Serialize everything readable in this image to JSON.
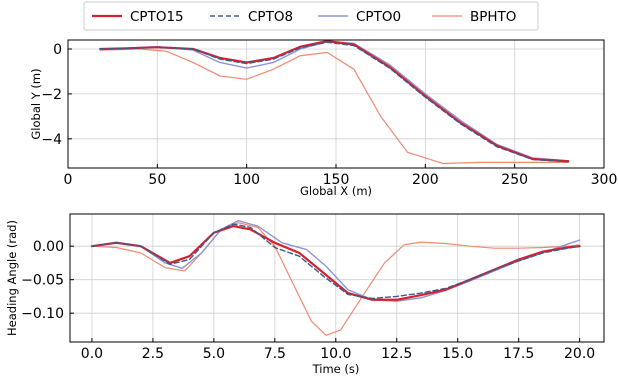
{
  "chart_data": [
    {
      "type": "line",
      "xlabel": "Global X (m)",
      "ylabel": "Global Y (m)",
      "xlim": [
        0,
        300
      ],
      "ylim": [
        -5.3,
        0.4
      ],
      "xticks": [
        0,
        50,
        100,
        150,
        200,
        250,
        300
      ],
      "yticks": [
        0,
        -2,
        -4
      ],
      "grid": true,
      "series": [
        {
          "name": "CPTO15",
          "points": [
            [
              18,
              0
            ],
            [
              30,
              0.02
            ],
            [
              50,
              0.08
            ],
            [
              70,
              0
            ],
            [
              85,
              -0.4
            ],
            [
              100,
              -0.6
            ],
            [
              115,
              -0.4
            ],
            [
              130,
              0.1
            ],
            [
              145,
              0.35
            ],
            [
              160,
              0.2
            ],
            [
              180,
              -0.8
            ],
            [
              200,
              -2.1
            ],
            [
              220,
              -3.3
            ],
            [
              240,
              -4.3
            ],
            [
              260,
              -4.9
            ],
            [
              280,
              -5.0
            ]
          ]
        },
        {
          "name": "CPTO8",
          "points": [
            [
              18,
              0
            ],
            [
              30,
              0.02
            ],
            [
              50,
              0.08
            ],
            [
              70,
              0
            ],
            [
              85,
              -0.45
            ],
            [
              100,
              -0.65
            ],
            [
              115,
              -0.45
            ],
            [
              130,
              0.05
            ],
            [
              145,
              0.3
            ],
            [
              160,
              0.15
            ],
            [
              180,
              -0.85
            ],
            [
              200,
              -2.15
            ],
            [
              220,
              -3.35
            ],
            [
              240,
              -4.35
            ],
            [
              260,
              -4.92
            ],
            [
              280,
              -5.02
            ]
          ]
        },
        {
          "name": "CPTO0",
          "points": [
            [
              18,
              0
            ],
            [
              30,
              0.03
            ],
            [
              50,
              0.1
            ],
            [
              70,
              -0.05
            ],
            [
              85,
              -0.6
            ],
            [
              100,
              -0.85
            ],
            [
              115,
              -0.6
            ],
            [
              130,
              0
            ],
            [
              145,
              0.32
            ],
            [
              160,
              0.25
            ],
            [
              180,
              -0.7
            ],
            [
              200,
              -2.0
            ],
            [
              220,
              -3.2
            ],
            [
              240,
              -4.25
            ],
            [
              260,
              -4.85
            ],
            [
              280,
              -4.98
            ]
          ]
        },
        {
          "name": "BPHTO",
          "points": [
            [
              18,
              -0.05
            ],
            [
              40,
              0
            ],
            [
              55,
              -0.1
            ],
            [
              70,
              -0.6
            ],
            [
              85,
              -1.2
            ],
            [
              100,
              -1.35
            ],
            [
              115,
              -0.9
            ],
            [
              130,
              -0.3
            ],
            [
              145,
              -0.15
            ],
            [
              160,
              -0.9
            ],
            [
              175,
              -3.0
            ],
            [
              190,
              -4.6
            ],
            [
              210,
              -5.1
            ],
            [
              230,
              -5.05
            ],
            [
              250,
              -5.05
            ],
            [
              270,
              -5.05
            ],
            [
              280,
              -5.05
            ]
          ]
        }
      ]
    },
    {
      "type": "line",
      "xlabel": "Time (s)",
      "ylabel": "Heading Angle (rad)",
      "xlim": [
        -0.9,
        21
      ],
      "ylim": [
        -0.143,
        0.048
      ],
      "xticks": [
        0,
        2.5,
        5,
        7.5,
        10,
        12.5,
        15,
        17.5,
        20
      ],
      "xtick_labels": [
        "0.0",
        "2.5",
        "5.0",
        "7.5",
        "10.0",
        "12.5",
        "15.0",
        "17.5",
        "20.0"
      ],
      "yticks": [
        0.0,
        -0.05,
        -0.1
      ],
      "ytick_labels": [
        "0.00",
        "−0.05",
        "−0.10"
      ],
      "grid": true,
      "series": [
        {
          "name": "CPTO15",
          "points": [
            [
              0,
              0
            ],
            [
              1,
              0.005
            ],
            [
              2,
              0
            ],
            [
              3.2,
              -0.025
            ],
            [
              4,
              -0.015
            ],
            [
              5,
              0.02
            ],
            [
              5.8,
              0.03
            ],
            [
              6.5,
              0.025
            ],
            [
              7.5,
              0.005
            ],
            [
              8.5,
              -0.01
            ],
            [
              9.5,
              -0.04
            ],
            [
              10.5,
              -0.07
            ],
            [
              11.5,
              -0.08
            ],
            [
              12.5,
              -0.08
            ],
            [
              13.5,
              -0.073
            ],
            [
              14.5,
              -0.065
            ],
            [
              15.5,
              -0.05
            ],
            [
              16.5,
              -0.035
            ],
            [
              17.5,
              -0.02
            ],
            [
              18.5,
              -0.008
            ],
            [
              19.5,
              -0.002
            ],
            [
              20,
              0
            ]
          ]
        },
        {
          "name": "CPTO8",
          "points": [
            [
              0,
              0
            ],
            [
              1,
              0.005
            ],
            [
              2,
              0
            ],
            [
              3.2,
              -0.027
            ],
            [
              4,
              -0.02
            ],
            [
              5,
              0.02
            ],
            [
              5.8,
              0.033
            ],
            [
              6.5,
              0.028
            ],
            [
              7.5,
              -0.002
            ],
            [
              8.5,
              -0.015
            ],
            [
              9.5,
              -0.045
            ],
            [
              10.5,
              -0.072
            ],
            [
              11.5,
              -0.078
            ],
            [
              12.5,
              -0.075
            ],
            [
              13.5,
              -0.07
            ],
            [
              14.5,
              -0.063
            ],
            [
              15.5,
              -0.05
            ],
            [
              16.5,
              -0.035
            ],
            [
              17.5,
              -0.022
            ],
            [
              18.5,
              -0.01
            ],
            [
              19.5,
              -0.003
            ],
            [
              20,
              0
            ]
          ]
        },
        {
          "name": "CPTO0",
          "points": [
            [
              0,
              0
            ],
            [
              1,
              0.006
            ],
            [
              2,
              0
            ],
            [
              3,
              -0.025
            ],
            [
              3.7,
              -0.033
            ],
            [
              4.5,
              -0.01
            ],
            [
              5.3,
              0.025
            ],
            [
              6,
              0.038
            ],
            [
              6.8,
              0.03
            ],
            [
              7.8,
              0.005
            ],
            [
              8.8,
              -0.005
            ],
            [
              9.6,
              -0.03
            ],
            [
              10.5,
              -0.065
            ],
            [
              11.5,
              -0.08
            ],
            [
              12.5,
              -0.082
            ],
            [
              13.5,
              -0.077
            ],
            [
              14.5,
              -0.066
            ],
            [
              15.5,
              -0.052
            ],
            [
              16.5,
              -0.037
            ],
            [
              17.5,
              -0.022
            ],
            [
              18.5,
              -0.01
            ],
            [
              19.5,
              0.003
            ],
            [
              20,
              0.009
            ]
          ]
        },
        {
          "name": "BPHTO",
          "points": [
            [
              0,
              0
            ],
            [
              1,
              -0.002
            ],
            [
              2,
              -0.01
            ],
            [
              3,
              -0.032
            ],
            [
              3.8,
              -0.037
            ],
            [
              4.5,
              -0.01
            ],
            [
              5.3,
              0.025
            ],
            [
              6,
              0.035
            ],
            [
              6.8,
              0.028
            ],
            [
              7.5,
              0
            ],
            [
              8.3,
              -0.06
            ],
            [
              9,
              -0.112
            ],
            [
              9.6,
              -0.133
            ],
            [
              10.2,
              -0.125
            ],
            [
              11,
              -0.08
            ],
            [
              12,
              -0.025
            ],
            [
              12.8,
              0.002
            ],
            [
              13.5,
              0.006
            ],
            [
              14.5,
              0.004
            ],
            [
              15.5,
              0
            ],
            [
              16.5,
              -0.003
            ],
            [
              17.5,
              -0.003
            ],
            [
              18.5,
              -0.002
            ],
            [
              19.5,
              0
            ],
            [
              20,
              0.002
            ]
          ]
        }
      ]
    }
  ],
  "legend": {
    "placement": "top-center",
    "items": [
      {
        "label": "CPTO15",
        "color": "#d6202e",
        "dash": "solid"
      },
      {
        "label": "CPTO8",
        "color": "#3a5c8c",
        "dash": "dashed"
      },
      {
        "label": "CPTO0",
        "color": "#8c95d4",
        "dash": "solid"
      },
      {
        "label": "BPHTO",
        "color": "#f08a70",
        "dash": "solid"
      }
    ]
  },
  "colors": {
    "CPTO15": "#d6202e",
    "CPTO8": "#3a5c8c",
    "CPTO0": "#8c95d4",
    "BPHTO": "#f08a70",
    "grid": "#d0d0d0"
  }
}
